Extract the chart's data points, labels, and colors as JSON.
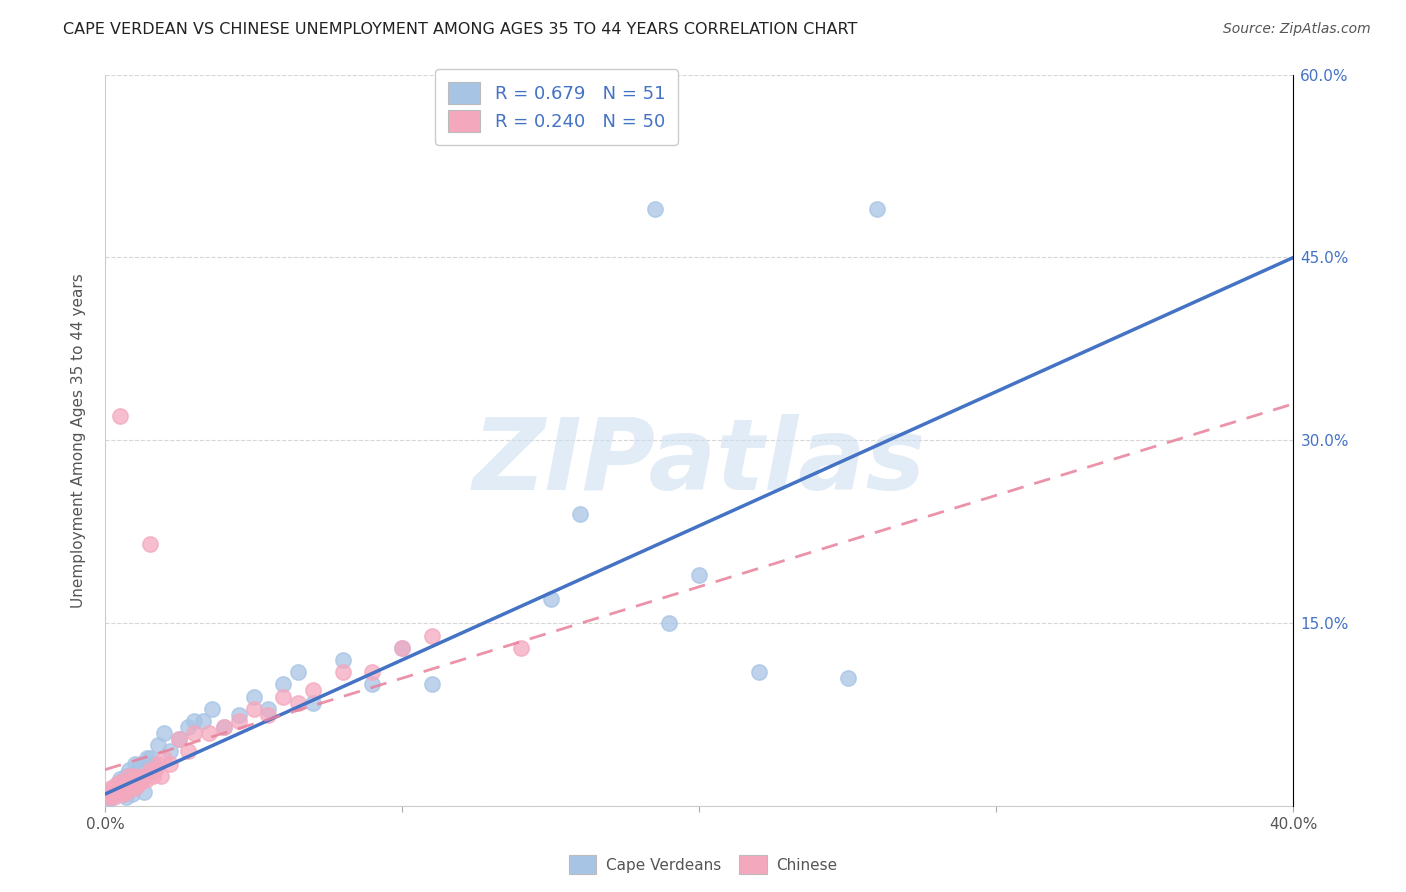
{
  "title": "CAPE VERDEAN VS CHINESE UNEMPLOYMENT AMONG AGES 35 TO 44 YEARS CORRELATION CHART",
  "source": "Source: ZipAtlas.com",
  "ylabel": "Unemployment Among Ages 35 to 44 years",
  "xlim": [
    0.0,
    0.4
  ],
  "ylim": [
    0.0,
    0.6
  ],
  "xtick_vals": [
    0.0,
    0.1,
    0.2,
    0.3,
    0.4
  ],
  "xtick_labels": [
    "0.0%",
    "",
    "",
    "",
    "40.0%"
  ],
  "ytick_vals": [
    0.0,
    0.15,
    0.3,
    0.45,
    0.6
  ],
  "right_ytick_vals": [
    0.15,
    0.3,
    0.45,
    0.6
  ],
  "right_ytick_labels": [
    "15.0%",
    "30.0%",
    "45.0%",
    "60.0%"
  ],
  "cape_verdean_color": "#a8c4e5",
  "chinese_color": "#f4a8be",
  "cape_verdean_line_color": "#4472c4",
  "chinese_line_color": "#e8809a",
  "cv_R": 0.679,
  "cv_N": 51,
  "ch_R": 0.24,
  "ch_N": 50,
  "cv_line_x0": 0.0,
  "cv_line_y0": 0.01,
  "cv_line_x1": 0.4,
  "cv_line_y1": 0.45,
  "ch_line_x0": 0.0,
  "ch_line_y0": 0.03,
  "ch_line_x1": 0.4,
  "ch_line_y1": 0.33,
  "cv_scatter_x": [
    0.001,
    0.002,
    0.002,
    0.003,
    0.003,
    0.004,
    0.004,
    0.005,
    0.005,
    0.006,
    0.006,
    0.007,
    0.007,
    0.008,
    0.008,
    0.009,
    0.01,
    0.01,
    0.011,
    0.012,
    0.013,
    0.014,
    0.015,
    0.016,
    0.018,
    0.02,
    0.022,
    0.025,
    0.028,
    0.03,
    0.033,
    0.036,
    0.04,
    0.045,
    0.05,
    0.055,
    0.06,
    0.065,
    0.07,
    0.08,
    0.09,
    0.1,
    0.11,
    0.15,
    0.16,
    0.19,
    0.2,
    0.22,
    0.25,
    0.185,
    0.26
  ],
  "cv_scatter_y": [
    0.005,
    0.008,
    0.01,
    0.012,
    0.015,
    0.015,
    0.018,
    0.02,
    0.022,
    0.01,
    0.012,
    0.008,
    0.025,
    0.015,
    0.03,
    0.01,
    0.025,
    0.035,
    0.03,
    0.035,
    0.012,
    0.04,
    0.04,
    0.035,
    0.05,
    0.06,
    0.045,
    0.055,
    0.065,
    0.07,
    0.07,
    0.08,
    0.065,
    0.075,
    0.09,
    0.08,
    0.1,
    0.11,
    0.085,
    0.12,
    0.1,
    0.13,
    0.1,
    0.17,
    0.24,
    0.15,
    0.19,
    0.11,
    0.105,
    0.49,
    0.49
  ],
  "ch_scatter_x": [
    0.001,
    0.001,
    0.002,
    0.002,
    0.003,
    0.003,
    0.004,
    0.004,
    0.005,
    0.005,
    0.006,
    0.006,
    0.007,
    0.007,
    0.008,
    0.008,
    0.009,
    0.009,
    0.01,
    0.01,
    0.011,
    0.011,
    0.012,
    0.013,
    0.014,
    0.015,
    0.016,
    0.017,
    0.018,
    0.019,
    0.02,
    0.022,
    0.025,
    0.028,
    0.03,
    0.035,
    0.04,
    0.045,
    0.05,
    0.055,
    0.06,
    0.065,
    0.07,
    0.08,
    0.09,
    0.1,
    0.11,
    0.14,
    0.005,
    0.015
  ],
  "ch_scatter_y": [
    0.008,
    0.012,
    0.01,
    0.015,
    0.008,
    0.015,
    0.01,
    0.018,
    0.012,
    0.02,
    0.01,
    0.015,
    0.012,
    0.02,
    0.015,
    0.025,
    0.018,
    0.022,
    0.015,
    0.025,
    0.018,
    0.022,
    0.02,
    0.025,
    0.022,
    0.03,
    0.025,
    0.03,
    0.035,
    0.025,
    0.04,
    0.035,
    0.055,
    0.045,
    0.06,
    0.06,
    0.065,
    0.07,
    0.08,
    0.075,
    0.09,
    0.085,
    0.095,
    0.11,
    0.11,
    0.13,
    0.14,
    0.13,
    0.32,
    0.215
  ],
  "watermark_text": "ZIPatlas",
  "watermark_color": "#cde0f0",
  "background_color": "#ffffff"
}
